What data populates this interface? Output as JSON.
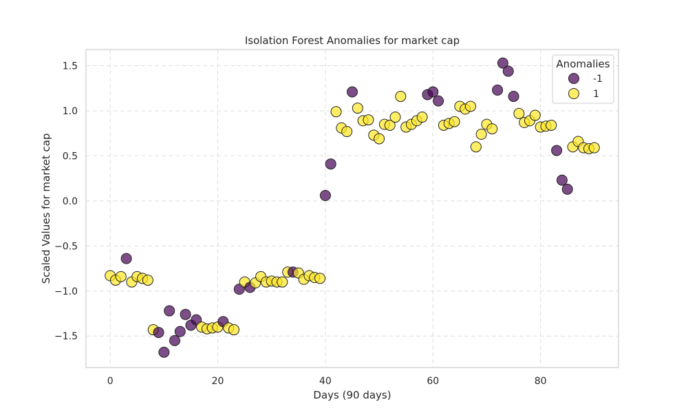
{
  "chart_data": {
    "type": "scatter",
    "title": "Isolation Forest Anomalies for market cap",
    "xlabel": "Days (90 days)",
    "ylabel": "Scaled Values for market cap",
    "xlim": [
      -4.5,
      94.5
    ],
    "ylim": [
      -1.85,
      1.68
    ],
    "xticks": [
      0,
      20,
      40,
      60,
      80
    ],
    "yticks": [
      -1.5,
      -1.0,
      -0.5,
      0.0,
      0.5,
      1.0,
      1.5
    ],
    "ytick_labels": [
      "−1.5",
      "−1.0",
      "−0.5",
      "0.0",
      "0.5",
      "1.0",
      "1.5"
    ],
    "grid": true,
    "legend": {
      "title": "Anomalies",
      "placement": "top-right",
      "entries": [
        {
          "label": "-1",
          "color": "#440154"
        },
        {
          "label": "1",
          "color": "#fde725"
        }
      ]
    },
    "colors": {
      "-1": "#440154",
      "1": "#fde725"
    },
    "x": [
      0,
      1,
      2,
      3,
      4,
      5,
      6,
      7,
      8,
      9,
      10,
      11,
      12,
      13,
      14,
      15,
      16,
      17,
      18,
      19,
      20,
      21,
      22,
      23,
      24,
      25,
      26,
      27,
      28,
      29,
      30,
      31,
      32,
      33,
      34,
      35,
      36,
      37,
      38,
      39,
      40,
      41,
      42,
      43,
      44,
      45,
      46,
      47,
      48,
      49,
      50,
      51,
      52,
      53,
      54,
      55,
      56,
      57,
      58,
      59,
      60,
      61,
      62,
      63,
      64,
      65,
      66,
      67,
      68,
      69,
      70,
      71,
      72,
      73,
      74,
      75,
      76,
      77,
      78,
      79,
      80,
      81,
      82,
      83,
      84,
      85,
      86,
      87,
      88,
      89,
      90
    ],
    "y": [
      -0.83,
      -0.88,
      -0.84,
      -0.64,
      -0.9,
      -0.84,
      -0.86,
      -0.88,
      -1.43,
      -1.46,
      -1.68,
      -1.22,
      -1.55,
      -1.45,
      -1.26,
      -1.38,
      -1.32,
      -1.4,
      -1.42,
      -1.41,
      -1.4,
      -1.34,
      -1.41,
      -1.43,
      -0.98,
      -0.9,
      -0.96,
      -0.91,
      -0.84,
      -0.9,
      -0.89,
      -0.9,
      -0.9,
      -0.79,
      -0.79,
      -0.8,
      -0.87,
      -0.83,
      -0.85,
      -0.86,
      0.06,
      0.41,
      0.99,
      0.81,
      0.77,
      1.21,
      1.03,
      0.89,
      0.9,
      0.73,
      0.69,
      0.85,
      0.84,
      0.93,
      1.16,
      0.82,
      0.85,
      0.89,
      0.93,
      1.18,
      1.21,
      1.11,
      0.84,
      0.86,
      0.88,
      1.05,
      1.02,
      1.05,
      0.6,
      0.74,
      0.85,
      0.8,
      1.23,
      1.53,
      1.44,
      1.16,
      0.97,
      0.87,
      0.89,
      0.95,
      0.82,
      0.83,
      0.84,
      0.56,
      0.23,
      0.13,
      0.6,
      0.66,
      0.59,
      0.58,
      0.59
    ],
    "anomaly": [
      1,
      1,
      1,
      -1,
      1,
      1,
      1,
      1,
      1,
      -1,
      -1,
      -1,
      -1,
      -1,
      -1,
      -1,
      -1,
      1,
      1,
      1,
      1,
      -1,
      1,
      1,
      -1,
      1,
      -1,
      1,
      1,
      1,
      1,
      1,
      1,
      1,
      -1,
      1,
      1,
      1,
      1,
      1,
      -1,
      -1,
      1,
      1,
      1,
      -1,
      1,
      1,
      1,
      1,
      1,
      1,
      1,
      1,
      1,
      1,
      1,
      1,
      1,
      -1,
      -1,
      -1,
      1,
      1,
      1,
      1,
      1,
      1,
      1,
      1,
      1,
      1,
      -1,
      -1,
      -1,
      -1,
      1,
      1,
      1,
      1,
      1,
      1,
      1,
      -1,
      -1,
      -1,
      1,
      1,
      1,
      1,
      1
    ]
  }
}
